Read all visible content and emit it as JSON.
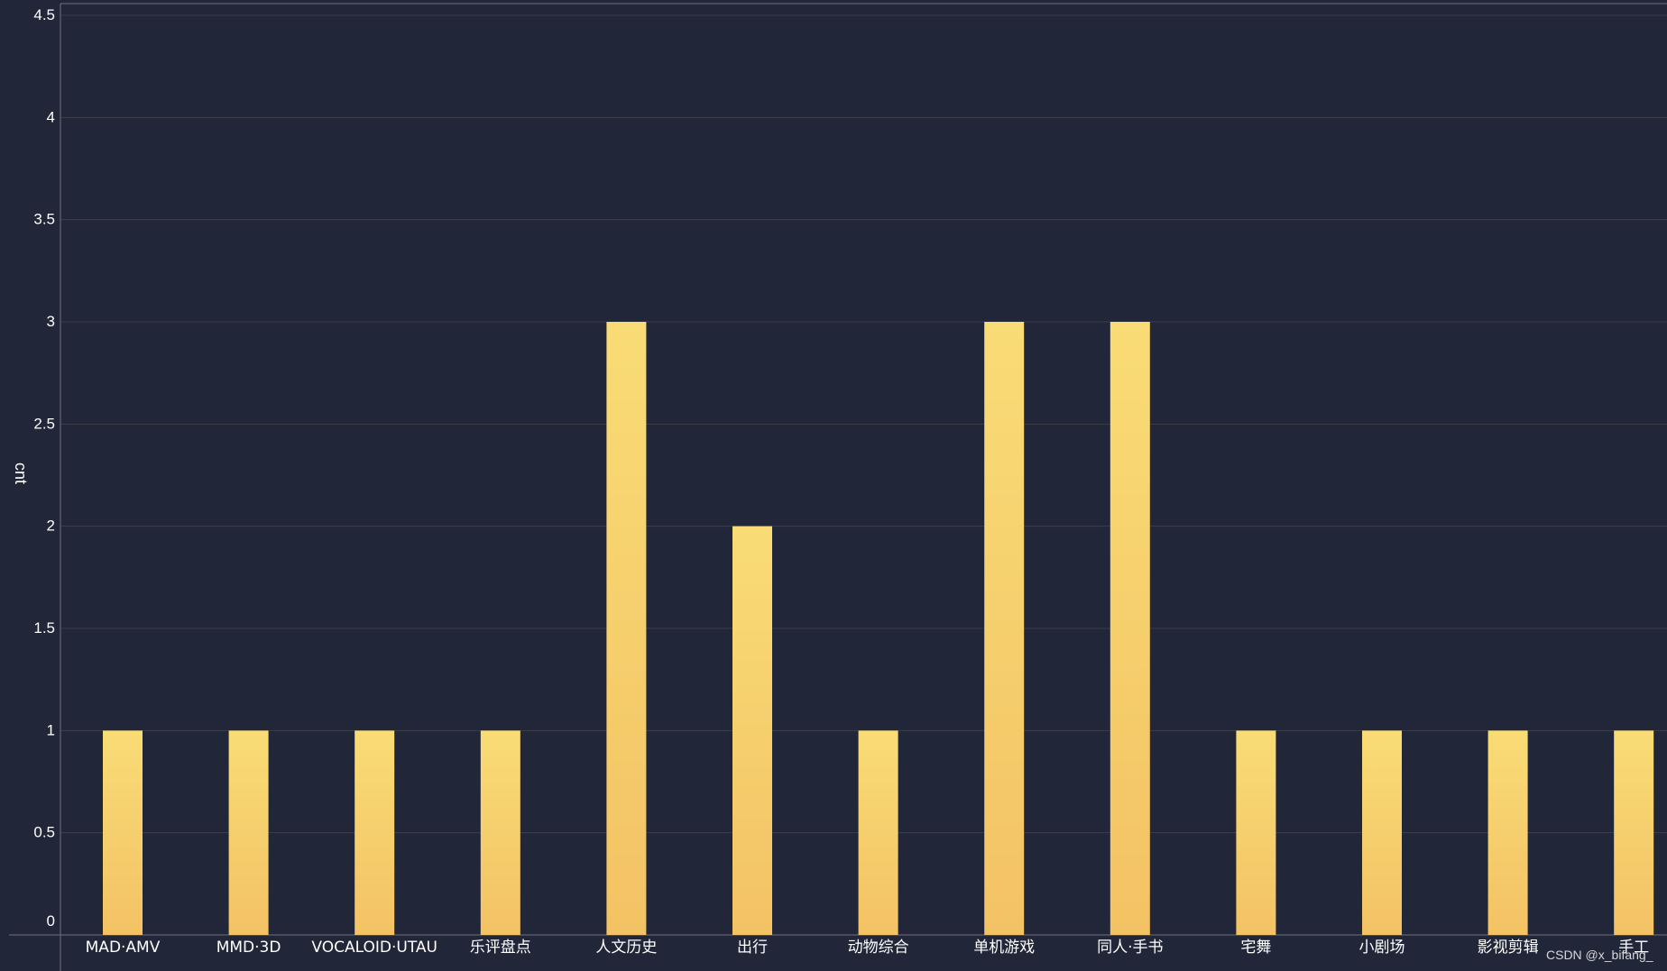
{
  "chart_data": {
    "type": "bar",
    "categories": [
      "MAD·AMV",
      "MMD·3D",
      "VOCALOID·UTAU",
      "乐评盘点",
      "人文历史",
      "出行",
      "动物综合",
      "单机游戏",
      "同人·手书",
      "宅舞",
      "小剧场",
      "影视剪辑",
      "手工"
    ],
    "values": [
      1,
      1,
      1,
      1,
      3,
      2,
      1,
      3,
      3,
      1,
      1,
      1,
      1
    ],
    "title": "",
    "xlabel": "",
    "ylabel": "cnt",
    "ylim": [
      0,
      4.5
    ],
    "yticks": [
      "0",
      "0.5",
      "1",
      "1.5",
      "2",
      "2.5",
      "3",
      "3.5",
      "4",
      "4.5"
    ],
    "grid": true,
    "legend": "none"
  },
  "colors": {
    "background": "#212639",
    "bar_top": "#f9dc76",
    "bar_bottom": "#f3c264",
    "grid": "#3c3f46",
    "text": "#ffffff"
  },
  "watermark": "CSDN @x_bifang_"
}
